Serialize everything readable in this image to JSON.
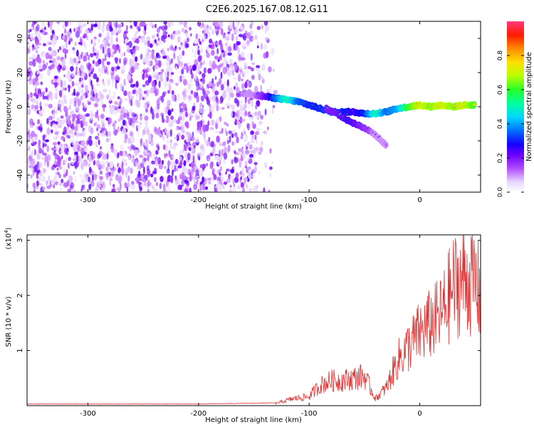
{
  "title": "C2E6.2025.167.08.12.G11",
  "chart_data": [
    {
      "type": "heatmap",
      "xlabel": "Height of straight line (km)",
      "ylabel": "Frequency (Hz)",
      "xlim": [
        -355,
        55
      ],
      "ylim": [
        -50,
        50
      ],
      "x_ticks": [
        -300,
        -200,
        -100,
        0
      ],
      "y_ticks": [
        -40,
        -20,
        0,
        20,
        40
      ],
      "colorbar": {
        "label": "Normalized spectral amplitude",
        "range": [
          0,
          1
        ],
        "ticks": [
          0.0,
          0.2,
          0.4,
          0.6,
          0.8
        ],
        "colors": [
          "#ffffff",
          "#e8d8ff",
          "#b04fff",
          "#6a00ff",
          "#1a00ff",
          "#0060ff",
          "#00c8ff",
          "#00ffb0",
          "#30ff30",
          "#c8ff00",
          "#ffd000",
          "#ff7000",
          "#ff0000",
          "#ff3a7a"
        ]
      },
      "noise_region": {
        "x_range": [
          -355,
          -140
        ],
        "freq_range": [
          -50,
          50
        ],
        "amplitude": "low"
      },
      "ridge": [
        {
          "x": -160,
          "y": 8,
          "a": 0.25
        },
        {
          "x": -150,
          "y": 7,
          "a": 0.3
        },
        {
          "x": -140,
          "y": 6,
          "a": 0.4
        },
        {
          "x": -130,
          "y": 5,
          "a": 0.55
        },
        {
          "x": -120,
          "y": 4,
          "a": 0.7
        },
        {
          "x": -110,
          "y": 3,
          "a": 0.55
        },
        {
          "x": -100,
          "y": 1,
          "a": 0.5
        },
        {
          "x": -90,
          "y": -1,
          "a": 0.5
        },
        {
          "x": -80,
          "y": -3,
          "a": 0.55
        },
        {
          "x": -70,
          "y": -3,
          "a": 0.5
        },
        {
          "x": -60,
          "y": -3,
          "a": 0.45
        },
        {
          "x": -50,
          "y": -4,
          "a": 0.5
        },
        {
          "x": -40,
          "y": -4,
          "a": 0.7
        },
        {
          "x": -30,
          "y": -3,
          "a": 0.55
        },
        {
          "x": -20,
          "y": -1,
          "a": 0.6
        },
        {
          "x": -10,
          "y": 0,
          "a": 0.8
        },
        {
          "x": 0,
          "y": 1,
          "a": 0.9
        },
        {
          "x": 10,
          "y": 0,
          "a": 0.85
        },
        {
          "x": 20,
          "y": 1,
          "a": 0.9
        },
        {
          "x": 30,
          "y": 0,
          "a": 0.85
        },
        {
          "x": 40,
          "y": 1,
          "a": 0.9
        },
        {
          "x": 50,
          "y": 1,
          "a": 0.8
        }
      ],
      "branch": [
        {
          "x": -85,
          "y": -1,
          "a": 0.4
        },
        {
          "x": -75,
          "y": -4,
          "a": 0.4
        },
        {
          "x": -65,
          "y": -8,
          "a": 0.45
        },
        {
          "x": -55,
          "y": -11,
          "a": 0.4
        },
        {
          "x": -45,
          "y": -14,
          "a": 0.35
        },
        {
          "x": -36,
          "y": -19,
          "a": 0.2
        },
        {
          "x": -30,
          "y": -23,
          "a": 0.12
        }
      ]
    },
    {
      "type": "line",
      "xlabel": "Height of straight line (km)",
      "ylabel": "SNR (10 * v/v)",
      "y_multiplier": "(x10",
      "y_multiplier_exp": "4",
      "y_multiplier_close": ")",
      "xlim": [
        -355,
        55
      ],
      "ylim": [
        0,
        3.1
      ],
      "x_ticks": [
        -300,
        -200,
        -100,
        0
      ],
      "y_ticks": [
        1,
        2,
        3
      ],
      "color": "#e03030",
      "envelope": [
        {
          "x": -355,
          "y": 0.03
        },
        {
          "x": -200,
          "y": 0.03
        },
        {
          "x": -130,
          "y": 0.05
        },
        {
          "x": -115,
          "y": 0.15
        },
        {
          "x": -100,
          "y": 0.2
        },
        {
          "x": -90,
          "y": 0.45
        },
        {
          "x": -80,
          "y": 0.55
        },
        {
          "x": -70,
          "y": 0.55
        },
        {
          "x": -60,
          "y": 0.6
        },
        {
          "x": -50,
          "y": 0.65
        },
        {
          "x": -40,
          "y": 0.15
        },
        {
          "x": -30,
          "y": 0.4
        },
        {
          "x": -20,
          "y": 1.0
        },
        {
          "x": -10,
          "y": 1.3
        },
        {
          "x": 0,
          "y": 1.6
        },
        {
          "x": 10,
          "y": 1.8
        },
        {
          "x": 20,
          "y": 2.0
        },
        {
          "x": 30,
          "y": 2.6
        },
        {
          "x": 40,
          "y": 2.8
        },
        {
          "x": 50,
          "y": 2.7
        },
        {
          "x": 55,
          "y": 2.4
        }
      ]
    }
  ]
}
